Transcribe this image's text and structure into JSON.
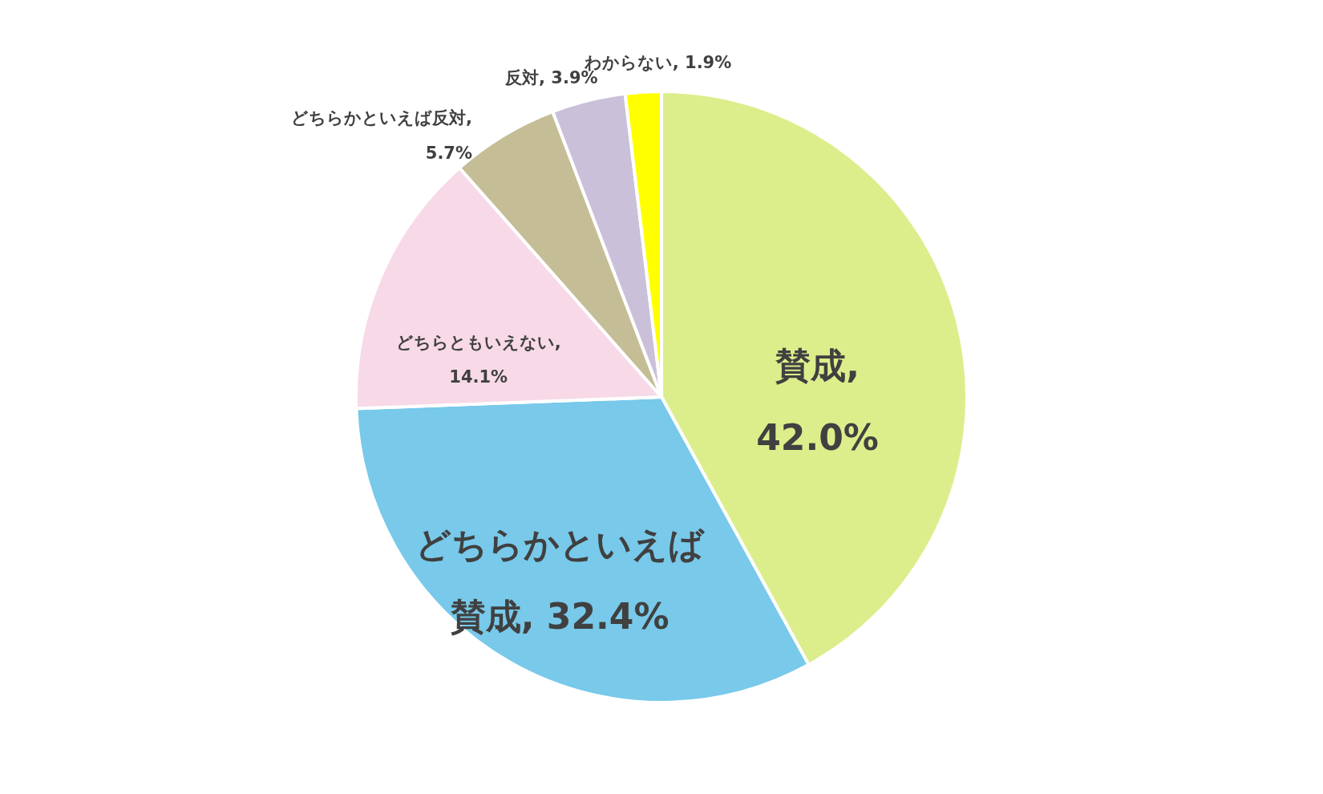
{
  "chart_data": {
    "type": "pie",
    "categories": [
      "賛成",
      "どちらかといえば賛成",
      "どちらともいえない",
      "どちらかといえば反対",
      "反対",
      "わからない"
    ],
    "values": [
      42.0,
      32.4,
      14.1,
      5.7,
      3.9,
      1.9
    ],
    "colors": [
      "#dcee8b",
      "#78c9ea",
      "#f7d9e7",
      "#c4bd96",
      "#cac0d9",
      "#ffff00"
    ],
    "value_labels": [
      ", 42.0%",
      ", 32.4%",
      ", 14.1%",
      ", 5.7%",
      ", 3.9%",
      ", 1.9%"
    ]
  }
}
